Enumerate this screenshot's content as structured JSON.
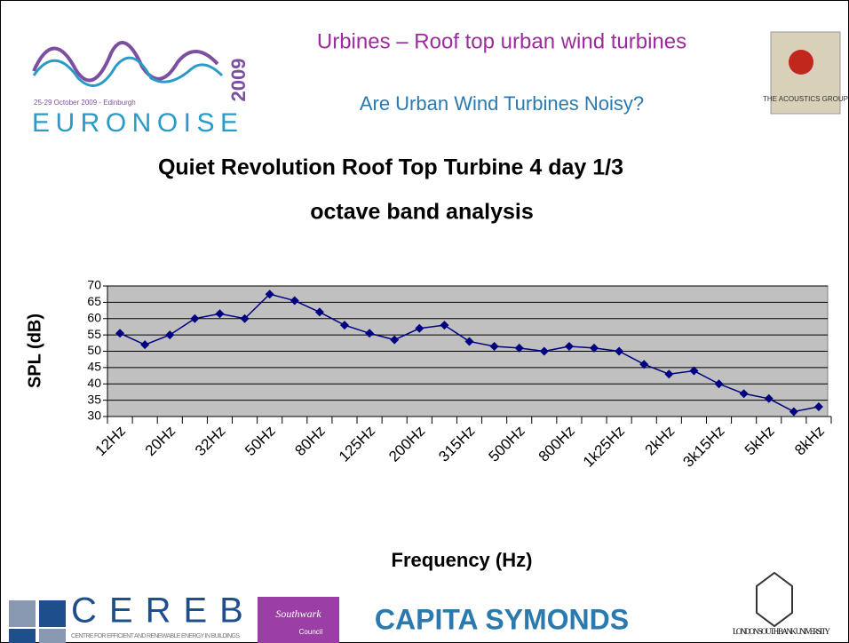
{
  "header": {
    "title": "Urbines – Roof top urban wind turbines",
    "subtitle": "Are Urban Wind Turbines Noisy?",
    "logo_left": "EURONOISE",
    "logo_left_year": "2009",
    "logo_left_dates": "25-29 October 2009 - Edinburgh",
    "logo_right": "THE ACOUSTICS GROUP"
  },
  "footer": {
    "cereb": "CEREB",
    "cereb_sub": "CENTRE FOR EFFICIENT AND RENEWABLE ENERGY IN BUILDINGS",
    "southwark": "Southwark",
    "council": "Council",
    "capita": "CAPITA SYMONDS",
    "lsbu": "LONDON SOUTH BANK UNIVERSITY"
  },
  "chart_data": {
    "type": "line",
    "title": [
      "Quiet Revolution Roof Top Turbine 4 day 1/3",
      "octave band analysis"
    ],
    "x_label": "Frequency (Hz)",
    "y_label": "SPL (dB)",
    "categories": [
      "12Hz",
      null,
      "20Hz",
      null,
      "32Hz",
      null,
      "50Hz",
      null,
      "80Hz",
      null,
      "125Hz",
      null,
      "200Hz",
      null,
      "315Hz",
      null,
      "500Hz",
      null,
      "800Hz",
      null,
      "1k25Hz",
      null,
      "2kHz",
      null,
      "3k15Hz",
      null,
      "5kHz",
      null,
      "8kHz"
    ],
    "series": [
      {
        "name": "SPL",
        "color": "#000080",
        "values": [
          55.5,
          52,
          55,
          60,
          61.5,
          60,
          67.5,
          65.5,
          62,
          58,
          55.5,
          53.5,
          57,
          58,
          53,
          51.5,
          51,
          50,
          51.5,
          51,
          50,
          46,
          43,
          44,
          40,
          37,
          35.5,
          31.5,
          33
        ]
      }
    ],
    "ylim": [
      30,
      70
    ],
    "yticks": [
      30,
      35,
      40,
      45,
      50,
      55,
      60,
      65,
      70
    ],
    "grid": true,
    "plot_color": "#c0c0c0"
  }
}
